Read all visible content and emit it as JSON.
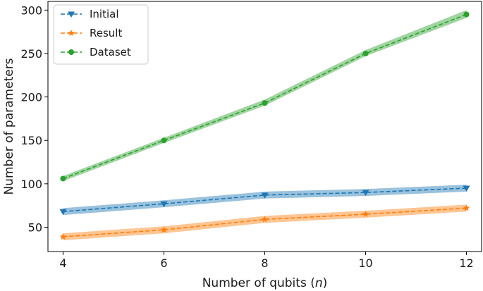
{
  "chart_data": {
    "type": "line",
    "x": [
      4,
      6,
      8,
      10,
      12
    ],
    "xlabel": "Number of qubits",
    "xlabel_var": "n",
    "ylabel": "Number of parameters",
    "xlim": [
      3.7,
      12.3
    ],
    "ylim": [
      22,
      310
    ],
    "xticks": [
      4,
      6,
      8,
      10,
      12
    ],
    "yticks": [
      50,
      100,
      150,
      200,
      250,
      300
    ],
    "grid": false,
    "legend_position": "top-left",
    "series": [
      {
        "name": "Initial",
        "values": [
          68,
          77,
          87,
          90,
          95
        ],
        "lower": [
          64,
          73,
          83,
          86,
          91
        ],
        "upper": [
          72,
          81,
          91,
          94,
          99
        ],
        "color": "#1f77b4",
        "marker": "triangle-down"
      },
      {
        "name": "Result",
        "values": [
          39,
          47,
          59,
          65,
          72
        ],
        "lower": [
          35,
          43,
          55,
          61,
          68
        ],
        "upper": [
          43,
          51,
          63,
          69,
          76
        ],
        "color": "#ff7f0e",
        "marker": "star"
      },
      {
        "name": "Dataset",
        "values": [
          106,
          150,
          193,
          250,
          295
        ],
        "lower": [
          103,
          147,
          190,
          247,
          291
        ],
        "upper": [
          109,
          153,
          197,
          254,
          300
        ],
        "color": "#2ca02c",
        "marker": "circle"
      }
    ]
  }
}
